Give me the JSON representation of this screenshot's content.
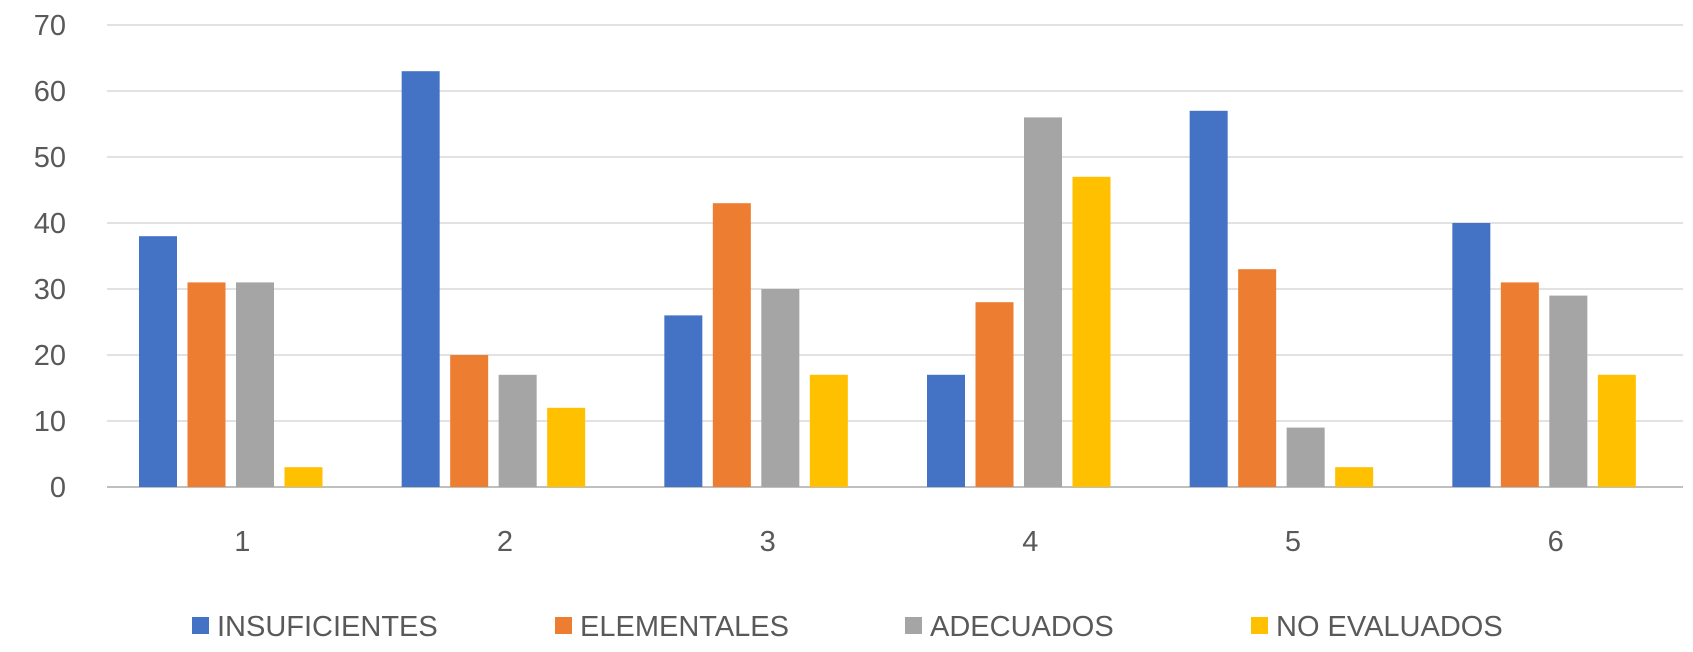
{
  "chart_data": {
    "type": "bar",
    "title": "",
    "xlabel": "",
    "ylabel": "",
    "categories": [
      "1",
      "2",
      "3",
      "4",
      "5",
      "6"
    ],
    "ylim": [
      0,
      70
    ],
    "yticks": [
      "0",
      "10",
      "20",
      "30",
      "40",
      "50",
      "60",
      "70"
    ],
    "grid": true,
    "legend_position": "bottom",
    "series": [
      {
        "name": "INSUFICIENTES",
        "color": "#4472C4",
        "values": [
          38,
          63,
          26,
          17,
          57,
          40
        ]
      },
      {
        "name": "ELEMENTALES",
        "color": "#ED7D31",
        "values": [
          31,
          20,
          43,
          28,
          33,
          31
        ]
      },
      {
        "name": "ADECUADOS",
        "color": "#A5A5A5",
        "values": [
          31,
          17,
          30,
          56,
          9,
          29
        ]
      },
      {
        "name": "NO EVALUADOS",
        "color": "#FFC000",
        "values": [
          3,
          12,
          17,
          47,
          3,
          17
        ]
      }
    ]
  }
}
